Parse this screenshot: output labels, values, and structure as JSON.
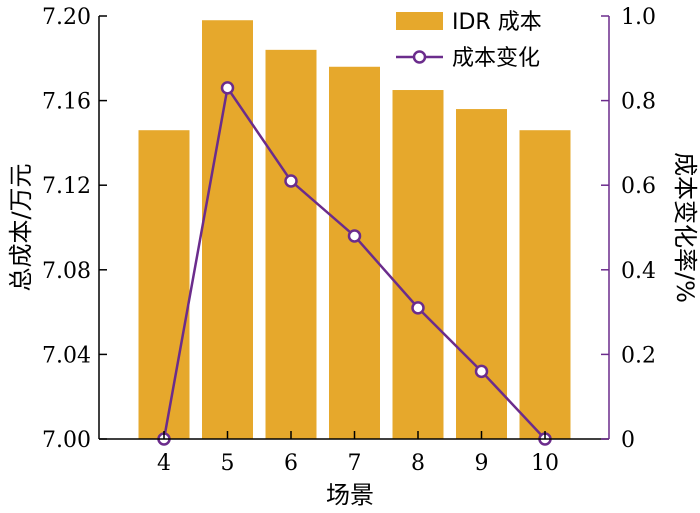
{
  "chart_data": {
    "type": "bar",
    "xlabel": "场景",
    "ylabel_left": "总成本/万元",
    "ylabel_right": "成本变化率/%",
    "categories": [
      "4",
      "5",
      "6",
      "7",
      "8",
      "9",
      "10"
    ],
    "ylim_left": [
      7.0,
      7.2
    ],
    "yticks_left": [
      "7.00",
      "7.04",
      "7.08",
      "7.12",
      "7.16",
      "7.20"
    ],
    "ylim_right": [
      0,
      1.0
    ],
    "yticks_right": [
      "0",
      "0.2",
      "0.4",
      "0.6",
      "0.8",
      "1.0"
    ],
    "series": [
      {
        "name": "IDR 成本",
        "kind": "bar",
        "axis": "left",
        "color": "#E6A82C",
        "values": [
          7.146,
          7.198,
          7.184,
          7.176,
          7.165,
          7.156,
          7.146
        ]
      },
      {
        "name": "成本变化",
        "kind": "line",
        "axis": "right",
        "color": "#6B2C8C",
        "values": [
          0.0,
          0.83,
          0.61,
          0.48,
          0.31,
          0.16,
          0.0
        ]
      }
    ],
    "legend_position": "top-right",
    "grid": false
  }
}
